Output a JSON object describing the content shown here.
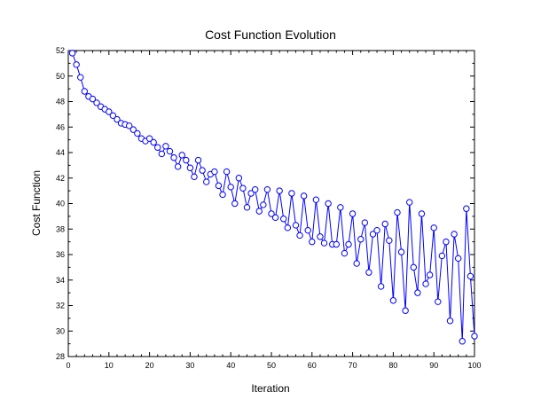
{
  "chart_data": {
    "type": "line",
    "title": "Cost Function Evolution",
    "xlabel": "Iteration",
    "ylabel": "Cost Function",
    "xlim": [
      0,
      100
    ],
    "ylim": [
      28,
      52
    ],
    "xticks": [
      "0",
      "10",
      "20",
      "30",
      "40",
      "50",
      "60",
      "70",
      "80",
      "90",
      "100"
    ],
    "yticks": [
      "28",
      "30",
      "32",
      "34",
      "36",
      "38",
      "40",
      "42",
      "44",
      "46",
      "48",
      "50",
      "52"
    ],
    "grid": false,
    "marker": "circle",
    "colors": {
      "series": "#0000ff",
      "marker_fill": "#ffffff",
      "axis": "#000000"
    },
    "series": [
      {
        "x": [
          1,
          2,
          3,
          4,
          5,
          6,
          7,
          8,
          9,
          10,
          11,
          12,
          13,
          14,
          15,
          16,
          17,
          18,
          19,
          20,
          21,
          22,
          23,
          24,
          25,
          26,
          27,
          28,
          29,
          30,
          31,
          32,
          33,
          34,
          35,
          36,
          37,
          38,
          39,
          40,
          41,
          42,
          43,
          44,
          45,
          46,
          47,
          48,
          49,
          50,
          51,
          52,
          53,
          54,
          55,
          56,
          57,
          58,
          59,
          60,
          61,
          62,
          63,
          64,
          65,
          66,
          67,
          68,
          69,
          70,
          71,
          72,
          73,
          74,
          75,
          76,
          77,
          78,
          79,
          80,
          81,
          82,
          83,
          84,
          85,
          86,
          87,
          88,
          89,
          90,
          91,
          92,
          93,
          94,
          95,
          96,
          97,
          98,
          99,
          100
        ],
        "y": [
          51.8,
          50.9,
          49.9,
          48.8,
          48.4,
          48.2,
          47.9,
          47.6,
          47.4,
          47.2,
          46.9,
          46.6,
          46.3,
          46.2,
          46.1,
          45.8,
          45.5,
          45.1,
          44.9,
          45.1,
          44.8,
          44.4,
          43.9,
          44.5,
          44.1,
          43.6,
          42.9,
          43.8,
          43.4,
          42.8,
          42.1,
          43.4,
          42.6,
          41.7,
          42.3,
          42.5,
          41.4,
          40.7,
          42.5,
          41.3,
          40.0,
          42.0,
          41.2,
          39.7,
          40.8,
          41.1,
          39.4,
          39.9,
          41.1,
          39.2,
          38.9,
          41.0,
          38.8,
          38.1,
          40.8,
          38.3,
          37.5,
          40.6,
          37.9,
          37.0,
          40.3,
          37.4,
          36.9,
          40.0,
          36.8,
          36.8,
          39.7,
          36.1,
          36.8,
          39.2,
          35.3,
          37.2,
          38.5,
          34.6,
          37.6,
          37.9,
          33.5,
          38.4,
          37.1,
          32.4,
          39.3,
          36.2,
          31.6,
          40.1,
          35.0,
          33.0,
          39.2,
          33.7,
          34.4,
          38.1,
          32.3,
          35.9,
          37.0,
          30.8,
          37.6,
          35.7,
          29.2,
          39.6,
          34.3,
          29.6
        ]
      }
    ]
  }
}
